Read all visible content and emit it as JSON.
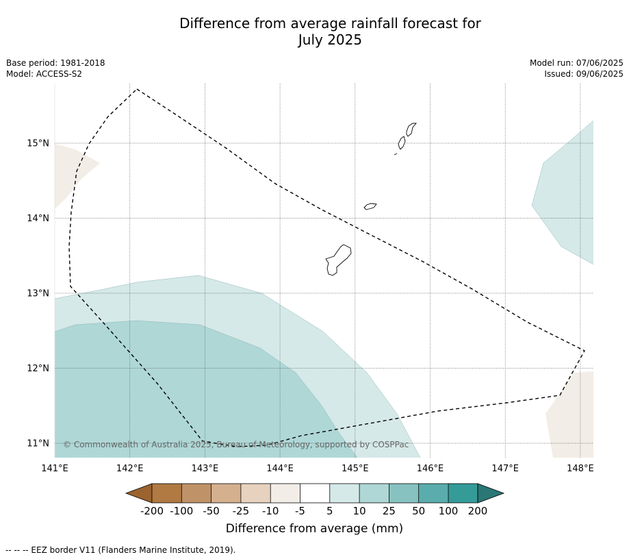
{
  "header": {
    "title_line1": "Difference from average rainfall forecast for",
    "title_line2": "July 2025",
    "base_period": "Base period: 1981-2018",
    "model": "Model: ACCESS-S2",
    "model_run": "Model run: 07/06/2025",
    "issued": "Issued: 09/06/2025"
  },
  "map": {
    "lon_labels": [
      "141°E",
      "142°E",
      "143°E",
      "144°E",
      "145°E",
      "146°E",
      "147°E",
      "148°E"
    ],
    "lat_labels": [
      "15°N",
      "14°N",
      "13°N",
      "12°N",
      "11°N"
    ],
    "copyright": "© Commonwealth of Australia 2025, Bureau of Meteorology, supported by COSPPac",
    "land_outline_color": "#000000",
    "eez_line_style": "dashed"
  },
  "colorbar": {
    "ticks": [
      "-200",
      "-100",
      "-50",
      "-25",
      "-10",
      "-5",
      "5",
      "10",
      "25",
      "50",
      "100",
      "200"
    ],
    "colors": [
      "#9c632f",
      "#b07a42",
      "#c09268",
      "#d4b08e",
      "#e6d2bf",
      "#f2ede6",
      "#ffffff",
      "#d5e9e8",
      "#aed7d6",
      "#87c2c1",
      "#5badad",
      "#349b99",
      "#2a7775"
    ],
    "label": "Difference from average (mm)"
  },
  "footer": {
    "legend_text": "--  --  -- EEZ border V11 (Flanders Marine Institute, 2019)."
  }
}
